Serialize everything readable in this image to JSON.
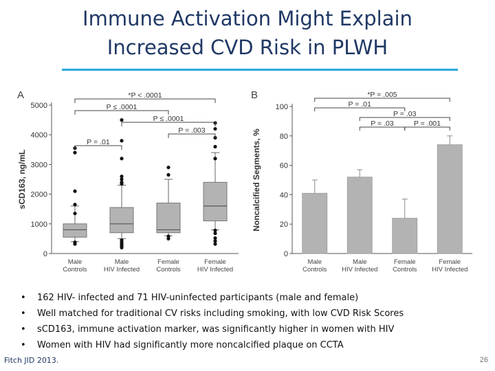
{
  "slide": {
    "title_line1": "Immune Activation Might Explain",
    "title_line2": "Increased CVD Risk in PLWH",
    "bullets": [
      "162 HIV- infected and 71 HIV-uninfected participants (male and female)",
      "Well matched for traditional CV risks including smoking, with low CVD Risk Scores",
      "sCD163, immune activation marker, was significantly higher in women with HIV",
      "Women with HIV had significantly more noncalcified plaque on CCTA"
    ],
    "citation": "Fitch JID 2013.",
    "page_number": "26",
    "accent_color": "#29a8e0",
    "title_color": "#1f3864"
  },
  "chart_data": [
    {
      "panel": "A",
      "type": "boxplot",
      "ylabel": "sCD163, ng/mL",
      "ylim": [
        0,
        5000
      ],
      "yticks": [
        0,
        1000,
        2000,
        3000,
        4000,
        5000
      ],
      "categories": [
        [
          "Male",
          "Controls"
        ],
        [
          "Male",
          "HIV Infected"
        ],
        [
          "Female",
          "Controls"
        ],
        [
          "Female",
          "HIV Infected"
        ]
      ],
      "boxes": [
        {
          "whisker_low": 400,
          "q1": 550,
          "median": 800,
          "q3": 1000,
          "whisker_high": 1600,
          "outliers": [
            3550,
            3400,
            2100,
            1650,
            1350,
            380,
            320
          ]
        },
        {
          "whisker_low": 500,
          "q1": 700,
          "median": 1000,
          "q3": 1550,
          "whisker_high": 2300,
          "outliers": [
            4500,
            3800,
            3200,
            2600,
            2500,
            2400,
            2350,
            450,
            380,
            320,
            260,
            200
          ]
        },
        {
          "whisker_low": 600,
          "q1": 700,
          "median": 800,
          "q3": 1700,
          "whisker_high": 2500,
          "outliers": [
            2900,
            2650,
            580,
            500
          ]
        },
        {
          "whisker_low": 800,
          "q1": 1100,
          "median": 1600,
          "q3": 2400,
          "whisker_high": 3400,
          "outliers": [
            4400,
            4200,
            3900,
            3600,
            3200,
            780,
            680,
            520,
            420,
            320
          ]
        }
      ],
      "brackets": [
        {
          "from": 0,
          "to": 3,
          "label": "*P < .0001",
          "level": 0
        },
        {
          "from": 0,
          "to": 2,
          "label": "P ≤ .0001",
          "level": 1
        },
        {
          "from": 1,
          "to": 3,
          "label": "P ≤ .0001",
          "level": 2
        },
        {
          "from": 2,
          "to": 3,
          "label": "P = .003",
          "level": 3
        },
        {
          "from": 0,
          "to": 1,
          "label": "P = .01",
          "level": 4
        }
      ]
    },
    {
      "panel": "B",
      "type": "bar",
      "ylabel": "Noncalcified Segments, %",
      "ylim": [
        0,
        100
      ],
      "yticks": [
        0,
        20,
        40,
        60,
        80,
        100
      ],
      "categories": [
        [
          "Male",
          "Controls"
        ],
        [
          "Male",
          "HIV Infected"
        ],
        [
          "Female",
          "Controls"
        ],
        [
          "Female",
          "HIV Infected"
        ]
      ],
      "values": [
        41,
        52,
        24,
        74
      ],
      "error_high": [
        50,
        57,
        37,
        80
      ],
      "brackets": [
        {
          "from": 0,
          "to": 3,
          "label": "*P = .005",
          "level": 0
        },
        {
          "from": 0,
          "to": 2,
          "label": "P = .01",
          "level": 1
        },
        {
          "from": 1,
          "to": 3,
          "label": "P = .03",
          "level": 2
        },
        {
          "from": 1,
          "to": 2,
          "label": "P = .03",
          "level": 3
        },
        {
          "from": 2,
          "to": 3,
          "label": "P = .001",
          "level": 3
        }
      ]
    }
  ]
}
